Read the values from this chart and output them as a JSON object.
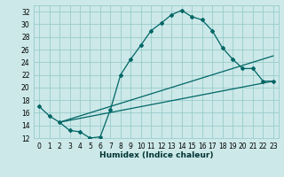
{
  "xlabel": "Humidex (Indice chaleur)",
  "bg_color": "#cce8e8",
  "grid_color": "#99cccc",
  "line_color": "#006666",
  "xlim": [
    -0.5,
    23.5
  ],
  "ylim": [
    12,
    33
  ],
  "xticks": [
    0,
    1,
    2,
    3,
    4,
    5,
    6,
    7,
    8,
    9,
    10,
    11,
    12,
    13,
    14,
    15,
    16,
    17,
    18,
    19,
    20,
    21,
    22,
    23
  ],
  "yticks": [
    12,
    14,
    16,
    18,
    20,
    22,
    24,
    26,
    28,
    30,
    32
  ],
  "line1_x": [
    0,
    1,
    2,
    3,
    4,
    5,
    6,
    7,
    8,
    9,
    10,
    11,
    12,
    13,
    14,
    15,
    16,
    17,
    18,
    19,
    20,
    21,
    22,
    23
  ],
  "line1_y": [
    17,
    15.5,
    14.5,
    13.2,
    13.0,
    12.0,
    12.2,
    16.5,
    22.0,
    24.5,
    26.7,
    29.0,
    30.2,
    31.5,
    32.2,
    31.2,
    30.7,
    29.0,
    26.3,
    24.5,
    23.0,
    23.0,
    21.0,
    21.0
  ],
  "line2_x": [
    2,
    23
  ],
  "line2_y": [
    14.5,
    25.0
  ],
  "line3_x": [
    2,
    23
  ],
  "line3_y": [
    14.5,
    21.0
  ],
  "xlabel_fontsize": 6.5,
  "tick_fontsize": 5.5,
  "marker_size": 2.0,
  "linewidth": 0.9
}
